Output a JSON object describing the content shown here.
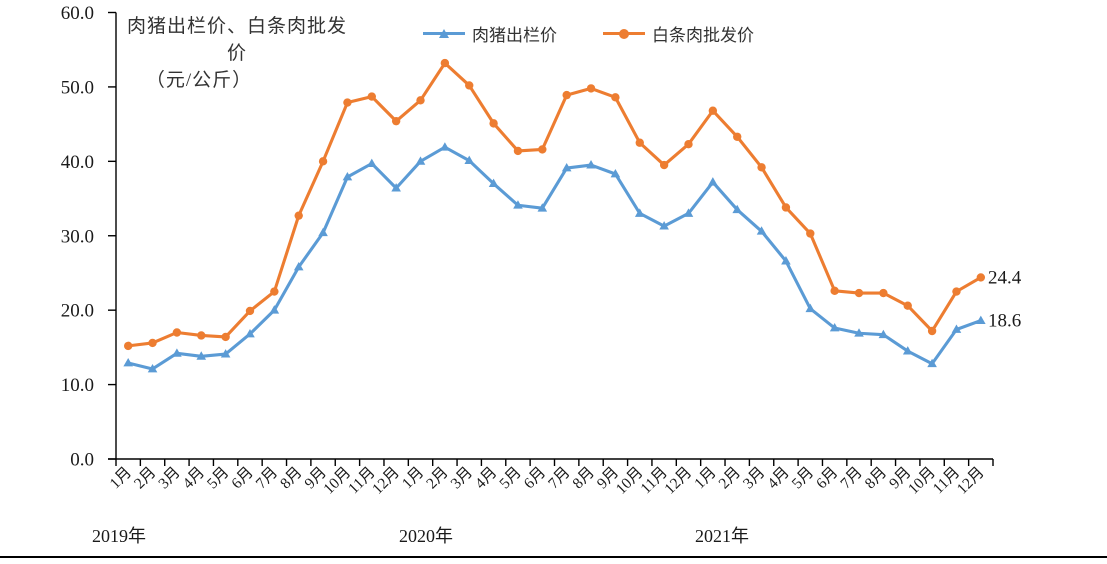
{
  "chart_data": {
    "type": "line",
    "title": "肉猪出栏价、白条肉批发价",
    "title_line2": "（元/公斤）",
    "ylabel": "元/公斤",
    "ylim": [
      0,
      60
    ],
    "ytick_interval": 10,
    "ytick_labels": [
      "0.0",
      "10.0",
      "20.0",
      "30.0",
      "40.0",
      "50.0",
      "60.0"
    ],
    "grid": false,
    "legend_position": "top",
    "categories": [
      "1月",
      "2月",
      "3月",
      "4月",
      "5月",
      "6月",
      "7月",
      "8月",
      "9月",
      "10月",
      "11月",
      "12月",
      "1月",
      "2月",
      "3月",
      "4月",
      "5月",
      "6月",
      "7月",
      "8月",
      "9月",
      "10月",
      "11月",
      "12月",
      "1月",
      "2月",
      "3月",
      "4月",
      "5月",
      "6月",
      "7月",
      "8月",
      "9月",
      "10月",
      "11月",
      "12月"
    ],
    "year_labels": [
      "2019年",
      "2020年",
      "2021年"
    ],
    "series": [
      {
        "name": "肉猪出栏价",
        "color": "#5B9BD5",
        "marker": "triangle",
        "end_label": "18.6",
        "values": [
          12.9,
          12.1,
          14.2,
          13.8,
          14.1,
          16.8,
          20.0,
          25.8,
          30.4,
          37.9,
          39.7,
          36.4,
          40.0,
          41.9,
          40.1,
          37.0,
          34.1,
          33.7,
          39.1,
          39.5,
          38.3,
          33.0,
          31.3,
          33.0,
          37.2,
          33.5,
          30.6,
          26.6,
          20.2,
          17.6,
          16.9,
          16.7,
          14.5,
          12.8,
          17.4,
          18.6
        ]
      },
      {
        "name": "白条肉批发价",
        "color": "#ED7D31",
        "marker": "circle",
        "end_label": "24.4",
        "values": [
          15.2,
          15.6,
          17.0,
          16.6,
          16.4,
          19.9,
          22.5,
          32.7,
          40.0,
          47.9,
          48.7,
          45.4,
          48.2,
          53.2,
          50.2,
          45.1,
          41.4,
          41.6,
          48.9,
          49.8,
          48.6,
          42.5,
          39.5,
          42.3,
          46.8,
          43.3,
          39.2,
          33.8,
          30.3,
          22.6,
          22.3,
          22.3,
          20.6,
          17.2,
          22.5,
          24.4
        ]
      }
    ]
  }
}
